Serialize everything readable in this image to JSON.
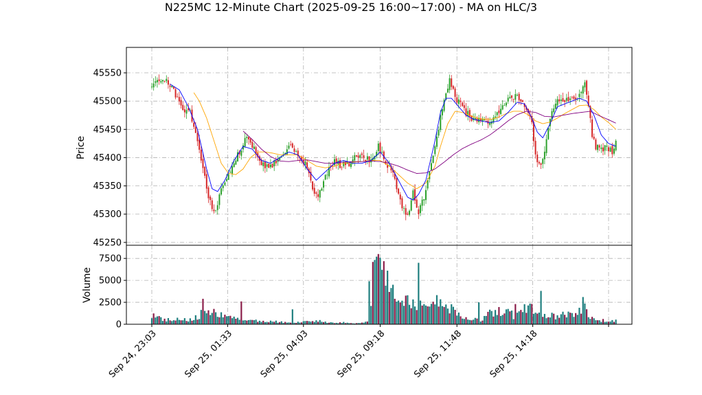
{
  "chart_data": {
    "type": "candlestick",
    "title": "N225MC 12-Minute Chart (2025-09-25 16:00~17:00) - MA on HLC/3",
    "price_panel": {
      "ylabel": "Price",
      "ylim": [
        45245,
        45595
      ],
      "yticks": [
        45250,
        45300,
        45350,
        45400,
        45450,
        45500,
        45550
      ],
      "series": [
        {
          "name": "",
          "color": "#2ca02c",
          "kind": "up-candles"
        },
        {
          "name": "",
          "color": "#d62728",
          "kind": "down-candles"
        },
        {
          "name": "",
          "color": "#0000ff",
          "kind": "ma-short"
        },
        {
          "name": "",
          "color": "#ffa500",
          "kind": "ma-medium"
        },
        {
          "name": "",
          "color": "#800080",
          "kind": "ma-long"
        }
      ],
      "close_anchors": [
        [
          0,
          45525
        ],
        [
          3,
          45540
        ],
        [
          6,
          45538
        ],
        [
          10,
          45530
        ],
        [
          14,
          45505
        ],
        [
          18,
          45480
        ],
        [
          20,
          45490
        ],
        [
          24,
          45440
        ],
        [
          28,
          45380
        ],
        [
          31,
          45330
        ],
        [
          34,
          45300
        ],
        [
          36,
          45320
        ],
        [
          38,
          45350
        ],
        [
          42,
          45370
        ],
        [
          45,
          45395
        ],
        [
          48,
          45410
        ],
        [
          52,
          45440
        ],
        [
          56,
          45415
        ],
        [
          60,
          45390
        ],
        [
          64,
          45380
        ],
        [
          68,
          45395
        ],
        [
          72,
          45410
        ],
        [
          76,
          45420
        ],
        [
          80,
          45405
        ],
        [
          84,
          45390
        ],
        [
          88,
          45345
        ],
        [
          91,
          45330
        ],
        [
          95,
          45370
        ],
        [
          100,
          45395
        ],
        [
          104,
          45385
        ],
        [
          108,
          45390
        ],
        [
          112,
          45405
        ],
        [
          116,
          45400
        ],
        [
          120,
          45395
        ],
        [
          124,
          45420
        ],
        [
          128,
          45390
        ],
        [
          131,
          45380
        ],
        [
          134,
          45350
        ],
        [
          137,
          45310
        ],
        [
          140,
          45295
        ],
        [
          143,
          45340
        ],
        [
          146,
          45300
        ],
        [
          149,
          45330
        ],
        [
          152,
          45370
        ],
        [
          155,
          45420
        ],
        [
          158,
          45470
        ],
        [
          161,
          45510
        ],
        [
          163,
          45540
        ],
        [
          166,
          45505
        ],
        [
          169,
          45495
        ],
        [
          172,
          45480
        ],
        [
          175,
          45470
        ],
        [
          178,
          45465
        ],
        [
          181,
          45470
        ],
        [
          184,
          45460
        ],
        [
          187,
          45470
        ],
        [
          190,
          45480
        ],
        [
          193,
          45490
        ],
        [
          196,
          45505
        ],
        [
          199,
          45510
        ],
        [
          202,
          45495
        ],
        [
          205,
          45490
        ],
        [
          208,
          45460
        ],
        [
          210,
          45400
        ],
        [
          212,
          45385
        ],
        [
          214,
          45400
        ],
        [
          216,
          45430
        ],
        [
          219,
          45480
        ],
        [
          222,
          45505
        ],
        [
          225,
          45495
        ],
        [
          228,
          45505
        ],
        [
          231,
          45500
        ],
        [
          234,
          45515
        ],
        [
          237,
          45530
        ],
        [
          239,
          45495
        ],
        [
          241,
          45440
        ],
        [
          243,
          45420
        ],
        [
          246,
          45415
        ],
        [
          249,
          45420
        ],
        [
          252,
          45410
        ],
        [
          254,
          45425
        ]
      ],
      "ma_short": [
        [
          10,
          45530
        ],
        [
          15,
          45520
        ],
        [
          20,
          45490
        ],
        [
          25,
          45450
        ],
        [
          30,
          45380
        ],
        [
          33,
          45345
        ],
        [
          36,
          45340
        ],
        [
          40,
          45360
        ],
        [
          45,
          45395
        ],
        [
          50,
          45420
        ],
        [
          55,
          45415
        ],
        [
          60,
          45395
        ],
        [
          65,
          45390
        ],
        [
          70,
          45400
        ],
        [
          75,
          45410
        ],
        [
          80,
          45405
        ],
        [
          85,
          45380
        ],
        [
          90,
          45360
        ],
        [
          95,
          45375
        ],
        [
          100,
          45390
        ],
        [
          105,
          45395
        ],
        [
          110,
          45390
        ],
        [
          115,
          45390
        ],
        [
          120,
          45395
        ],
        [
          125,
          45410
        ],
        [
          130,
          45390
        ],
        [
          135,
          45360
        ],
        [
          140,
          45330
        ],
        [
          143,
          45325
        ],
        [
          146,
          45335
        ],
        [
          150,
          45360
        ],
        [
          155,
          45430
        ],
        [
          158,
          45480
        ],
        [
          161,
          45505
        ],
        [
          164,
          45505
        ],
        [
          168,
          45490
        ],
        [
          172,
          45475
        ],
        [
          176,
          45468
        ],
        [
          180,
          45465
        ],
        [
          185,
          45462
        ],
        [
          190,
          45465
        ],
        [
          195,
          45480
        ],
        [
          200,
          45498
        ],
        [
          204,
          45495
        ],
        [
          208,
          45470
        ],
        [
          211,
          45445
        ],
        [
          214,
          45435
        ],
        [
          218,
          45460
        ],
        [
          222,
          45490
        ],
        [
          226,
          45495
        ],
        [
          230,
          45500
        ],
        [
          234,
          45505
        ],
        [
          238,
          45500
        ],
        [
          242,
          45475
        ],
        [
          246,
          45440
        ],
        [
          250,
          45425
        ],
        [
          254,
          45420
        ]
      ],
      "ma_medium": [
        [
          23,
          45515
        ],
        [
          26,
          45500
        ],
        [
          30,
          45470
        ],
        [
          34,
          45430
        ],
        [
          38,
          45390
        ],
        [
          42,
          45372
        ],
        [
          46,
          45370
        ],
        [
          50,
          45380
        ],
        [
          54,
          45400
        ],
        [
          58,
          45410
        ],
        [
          62,
          45410
        ],
        [
          66,
          45408
        ],
        [
          70,
          45405
        ],
        [
          75,
          45405
        ],
        [
          80,
          45405
        ],
        [
          85,
          45395
        ],
        [
          90,
          45385
        ],
        [
          95,
          45382
        ],
        [
          100,
          45385
        ],
        [
          105,
          45390
        ],
        [
          110,
          45392
        ],
        [
          115,
          45393
        ],
        [
          120,
          45395
        ],
        [
          125,
          45395
        ],
        [
          130,
          45385
        ],
        [
          135,
          45370
        ],
        [
          140,
          45355
        ],
        [
          145,
          45345
        ],
        [
          150,
          45355
        ],
        [
          155,
          45385
        ],
        [
          158,
          45420
        ],
        [
          162,
          45460
        ],
        [
          166,
          45482
        ],
        [
          170,
          45480
        ],
        [
          174,
          45475
        ],
        [
          178,
          45470
        ],
        [
          182,
          45468
        ],
        [
          186,
          45468
        ],
        [
          190,
          45472
        ],
        [
          194,
          45478
        ],
        [
          198,
          45482
        ],
        [
          202,
          45482
        ],
        [
          206,
          45476
        ],
        [
          210,
          45465
        ],
        [
          214,
          45460
        ],
        [
          218,
          45463
        ],
        [
          222,
          45470
        ],
        [
          226,
          45478
        ],
        [
          230,
          45485
        ],
        [
          234,
          45492
        ],
        [
          238,
          45493
        ],
        [
          242,
          45485
        ],
        [
          246,
          45472
        ],
        [
          250,
          45462
        ],
        [
          254,
          45450
        ]
      ],
      "ma_long": [
        [
          50,
          45447
        ],
        [
          55,
          45432
        ],
        [
          60,
          45415
        ],
        [
          65,
          45402
        ],
        [
          70,
          45394
        ],
        [
          75,
          45393
        ],
        [
          80,
          45395
        ],
        [
          85,
          45396
        ],
        [
          90,
          45393
        ],
        [
          95,
          45390
        ],
        [
          100,
          45390
        ],
        [
          105,
          45392
        ],
        [
          110,
          45393
        ],
        [
          115,
          45393
        ],
        [
          120,
          45394
        ],
        [
          125,
          45393
        ],
        [
          130,
          45390
        ],
        [
          135,
          45385
        ],
        [
          140,
          45378
        ],
        [
          145,
          45372
        ],
        [
          150,
          45373
        ],
        [
          155,
          45380
        ],
        [
          160,
          45392
        ],
        [
          165,
          45405
        ],
        [
          170,
          45416
        ],
        [
          175,
          45424
        ],
        [
          180,
          45431
        ],
        [
          185,
          45440
        ],
        [
          190,
          45452
        ],
        [
          195,
          45465
        ],
        [
          200,
          45476
        ],
        [
          205,
          45482
        ],
        [
          210,
          45480
        ],
        [
          215,
          45473
        ],
        [
          220,
          45472
        ],
        [
          225,
          45475
        ],
        [
          230,
          45478
        ],
        [
          235,
          45480
        ],
        [
          240,
          45482
        ],
        [
          245,
          45474
        ],
        [
          250,
          45467
        ],
        [
          254,
          45461
        ]
      ],
      "bars": 255,
      "seed": 20250925
    },
    "volume_panel": {
      "ylabel": "Volume",
      "ylim": [
        0,
        9000
      ],
      "yticks": [
        0,
        2500,
        5000,
        7500
      ],
      "colors": [
        "#1f7f7f",
        "#8b1e4a"
      ],
      "volume_anchors": [
        [
          0,
          1100
        ],
        [
          5,
          700
        ],
        [
          10,
          500
        ],
        [
          15,
          650
        ],
        [
          20,
          500
        ],
        [
          25,
          900
        ],
        [
          30,
          1700
        ],
        [
          35,
          1200
        ],
        [
          40,
          900
        ],
        [
          45,
          700
        ],
        [
          50,
          350
        ],
        [
          55,
          500
        ],
        [
          60,
          300
        ],
        [
          65,
          350
        ],
        [
          70,
          300
        ],
        [
          75,
          250
        ],
        [
          80,
          250
        ],
        [
          85,
          300
        ],
        [
          90,
          450
        ],
        [
          95,
          300
        ],
        [
          100,
          200
        ],
        [
          105,
          250
        ],
        [
          110,
          150
        ],
        [
          115,
          150
        ],
        [
          118,
          250
        ],
        [
          121,
          4800
        ],
        [
          124,
          7200
        ],
        [
          126,
          8000
        ],
        [
          128,
          5000
        ],
        [
          130,
          4200
        ],
        [
          133,
          3400
        ],
        [
          136,
          3600
        ],
        [
          138,
          3000
        ],
        [
          141,
          2600
        ],
        [
          144,
          2500
        ],
        [
          147,
          2200
        ],
        [
          150,
          2000
        ],
        [
          153,
          1800
        ],
        [
          156,
          2500
        ],
        [
          159,
          2200
        ],
        [
          162,
          2200
        ],
        [
          165,
          1500
        ],
        [
          168,
          1000
        ],
        [
          171,
          700
        ],
        [
          174,
          500
        ],
        [
          177,
          600
        ],
        [
          180,
          500
        ],
        [
          183,
          1000
        ],
        [
          186,
          1400
        ],
        [
          189,
          1600
        ],
        [
          192,
          1300
        ],
        [
          195,
          1500
        ],
        [
          198,
          1000
        ],
        [
          201,
          1200
        ],
        [
          204,
          1700
        ],
        [
          207,
          2200
        ],
        [
          210,
          1500
        ],
        [
          213,
          1000
        ],
        [
          216,
          1200
        ],
        [
          219,
          1000
        ],
        [
          222,
          900
        ],
        [
          225,
          1100
        ],
        [
          228,
          1200
        ],
        [
          231,
          1400
        ],
        [
          234,
          1700
        ],
        [
          237,
          2000
        ],
        [
          239,
          800
        ],
        [
          242,
          600
        ],
        [
          245,
          500
        ],
        [
          248,
          450
        ],
        [
          251,
          400
        ],
        [
          254,
          450
        ]
      ],
      "spikes": [
        [
          28,
          2900
        ],
        [
          49,
          2600
        ],
        [
          77,
          1700
        ],
        [
          119,
          4900
        ],
        [
          121,
          7100
        ],
        [
          123,
          7700
        ],
        [
          124,
          8000
        ],
        [
          126,
          6200
        ],
        [
          128,
          4400
        ],
        [
          132,
          4500
        ],
        [
          140,
          3300
        ],
        [
          146,
          7000
        ],
        [
          147,
          2700
        ],
        [
          179,
          2500
        ],
        [
          199,
          2300
        ],
        [
          213,
          3800
        ],
        [
          236,
          3100
        ],
        [
          220,
          1200
        ]
      ]
    },
    "x_axis": {
      "tick_labels": [
        "Sep 24, 23:03",
        "Sep 25, 01:33",
        "Sep 25, 04:03",
        "Sep 25, 09:18",
        "Sep 25, 11:48",
        "Sep 25, 14:18",
        ""
      ],
      "tick_positions": [
        0,
        41.5,
        83,
        125,
        167,
        208.5,
        250
      ]
    }
  }
}
